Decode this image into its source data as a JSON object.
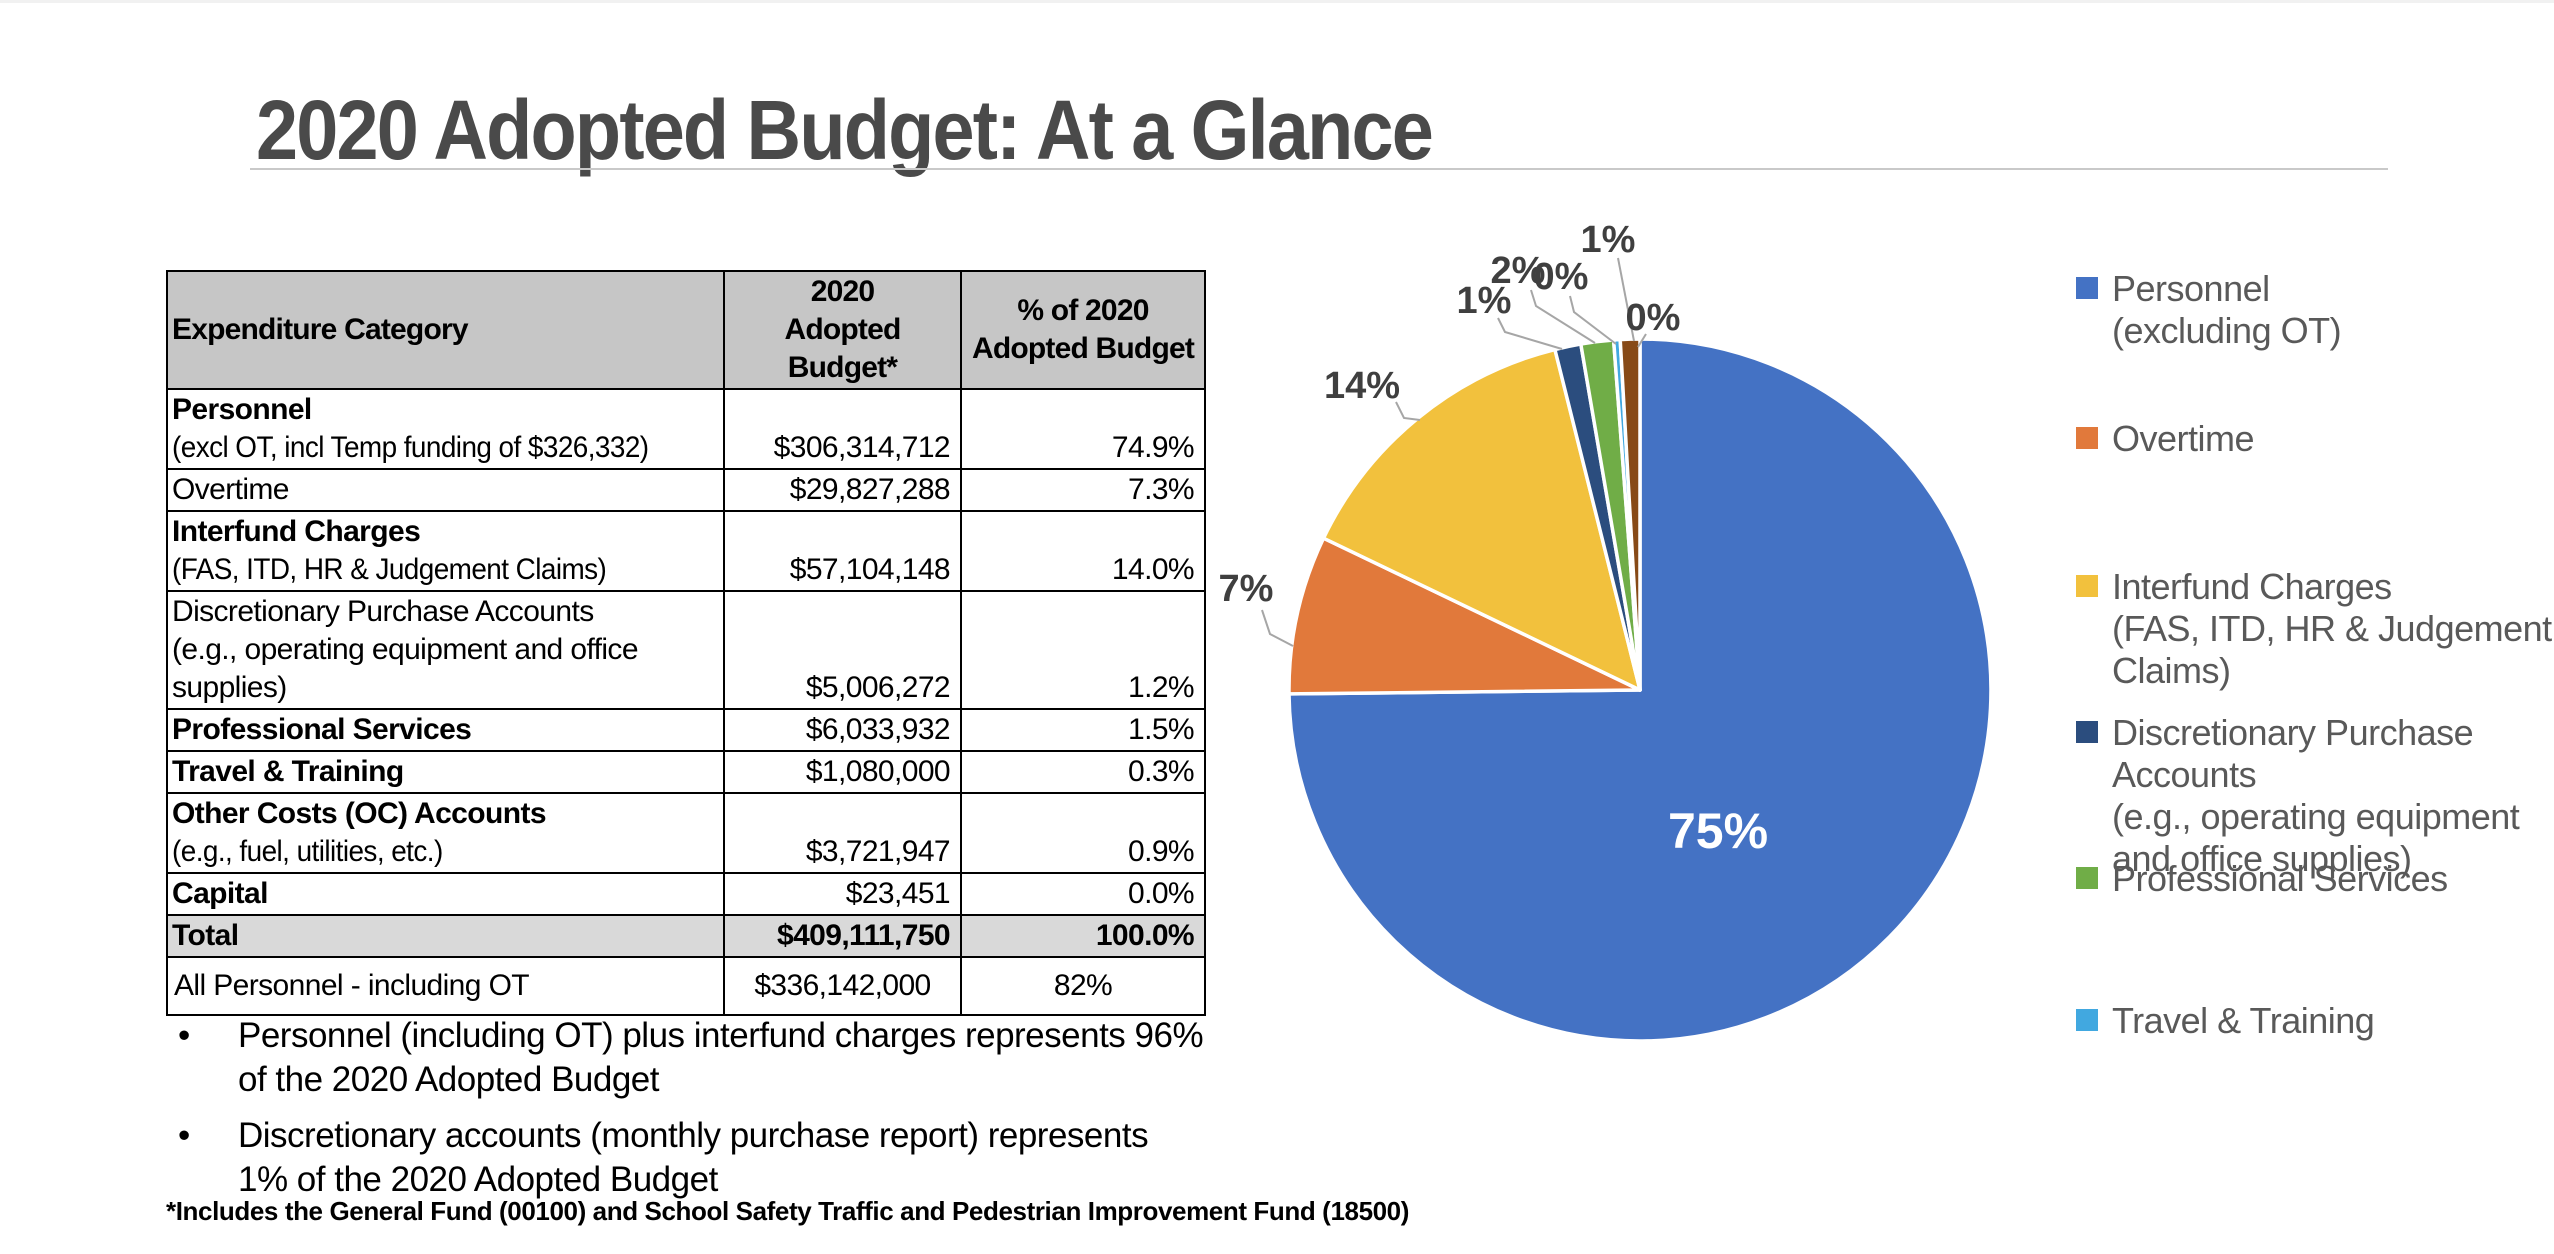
{
  "slide": {
    "title": "2020 Adopted Budget: At a Glance",
    "bullets": [
      "Personnel (including OT) plus interfund charges represents 96%\nof the 2020 Adopted Budget",
      "Discretionary accounts (monthly purchase report) represents\n1% of the 2020 Adopted Budget"
    ],
    "footnote": "*Includes the General Fund (00100) and School Safety Traffic and Pedestrian Improvement Fund (18500)"
  },
  "table": {
    "headers": [
      "Expenditure Category",
      "2020\nAdopted Budget*",
      "% of 2020\nAdopted Budget"
    ],
    "rows": [
      {
        "name": "Personnel",
        "name_bold": true,
        "note": "(excl OT, incl Temp funding of $326,332)",
        "budget": "$306,314,712",
        "pct": "74.9%"
      },
      {
        "name": "Overtime",
        "name_bold": false,
        "budget": "$29,827,288",
        "pct": "7.3%"
      },
      {
        "name": "Interfund Charges",
        "name_bold": true,
        "note": "(FAS, ITD, HR & Judgement Claims)",
        "budget": "$57,104,148",
        "pct": "14.0%"
      },
      {
        "name": "Discretionary Purchase Accounts",
        "name_bold": false,
        "note": "(e.g., operating equipment and office supplies)",
        "budget": "$5,006,272",
        "pct": "1.2%"
      },
      {
        "name": "Professional Services",
        "name_bold": true,
        "budget": "$6,033,932",
        "pct": "1.5%"
      },
      {
        "name": "Travel & Training",
        "name_bold": true,
        "budget": "$1,080,000",
        "pct": "0.3%"
      },
      {
        "name": "Other Costs (OC) Accounts",
        "name_bold": true,
        "note": "(e.g., fuel, utilities, etc.)",
        "budget": "$3,721,947",
        "pct": "0.9%"
      },
      {
        "name": "Capital",
        "name_bold": true,
        "budget": "$23,451",
        "pct": "0.0%"
      },
      {
        "name": "Total",
        "name_bold": true,
        "budget": "$409,111,750",
        "pct": "100.0%",
        "total": true
      }
    ]
  },
  "summary_row": {
    "label": "All Personnel - including OT",
    "budget": "$336,142,000",
    "pct": "82%"
  },
  "chart_data": {
    "type": "pie",
    "title": "",
    "categories": [
      "Personnel (excluding OT)",
      "Overtime",
      "Interfund Charges (FAS, ITD, HR & Judgement Claims)",
      "Discretionary Purchase Accounts (e.g., operating equipment and office supplies)",
      "Professional Services",
      "Travel & Training",
      "Other Costs (OC) Accounts",
      "Capital"
    ],
    "values": [
      74.9,
      7.3,
      14.0,
      1.2,
      1.5,
      0.3,
      0.9,
      0.0
    ],
    "data_labels": [
      "75%",
      "7%",
      "14%",
      "1%",
      "2%",
      "0%",
      "1%",
      "0%"
    ],
    "colors": [
      "#4472C4",
      "#E1793B",
      "#F2C13D",
      "#2B4D7E",
      "#70AD47",
      "#41A8E0",
      "#874A17",
      "#999999"
    ],
    "legend_position": "right",
    "legend": [
      [
        "Personnel",
        "(excluding OT)"
      ],
      [
        "Overtime"
      ],
      [
        "Interfund Charges",
        "(FAS, ITD, HR & Judgement",
        "Claims)"
      ],
      [
        "Discretionary Purchase",
        "Accounts",
        "(e.g., operating equipment",
        "and office supplies)"
      ],
      [
        "Professional Services"
      ],
      [
        "Travel & Training"
      ]
    ]
  }
}
